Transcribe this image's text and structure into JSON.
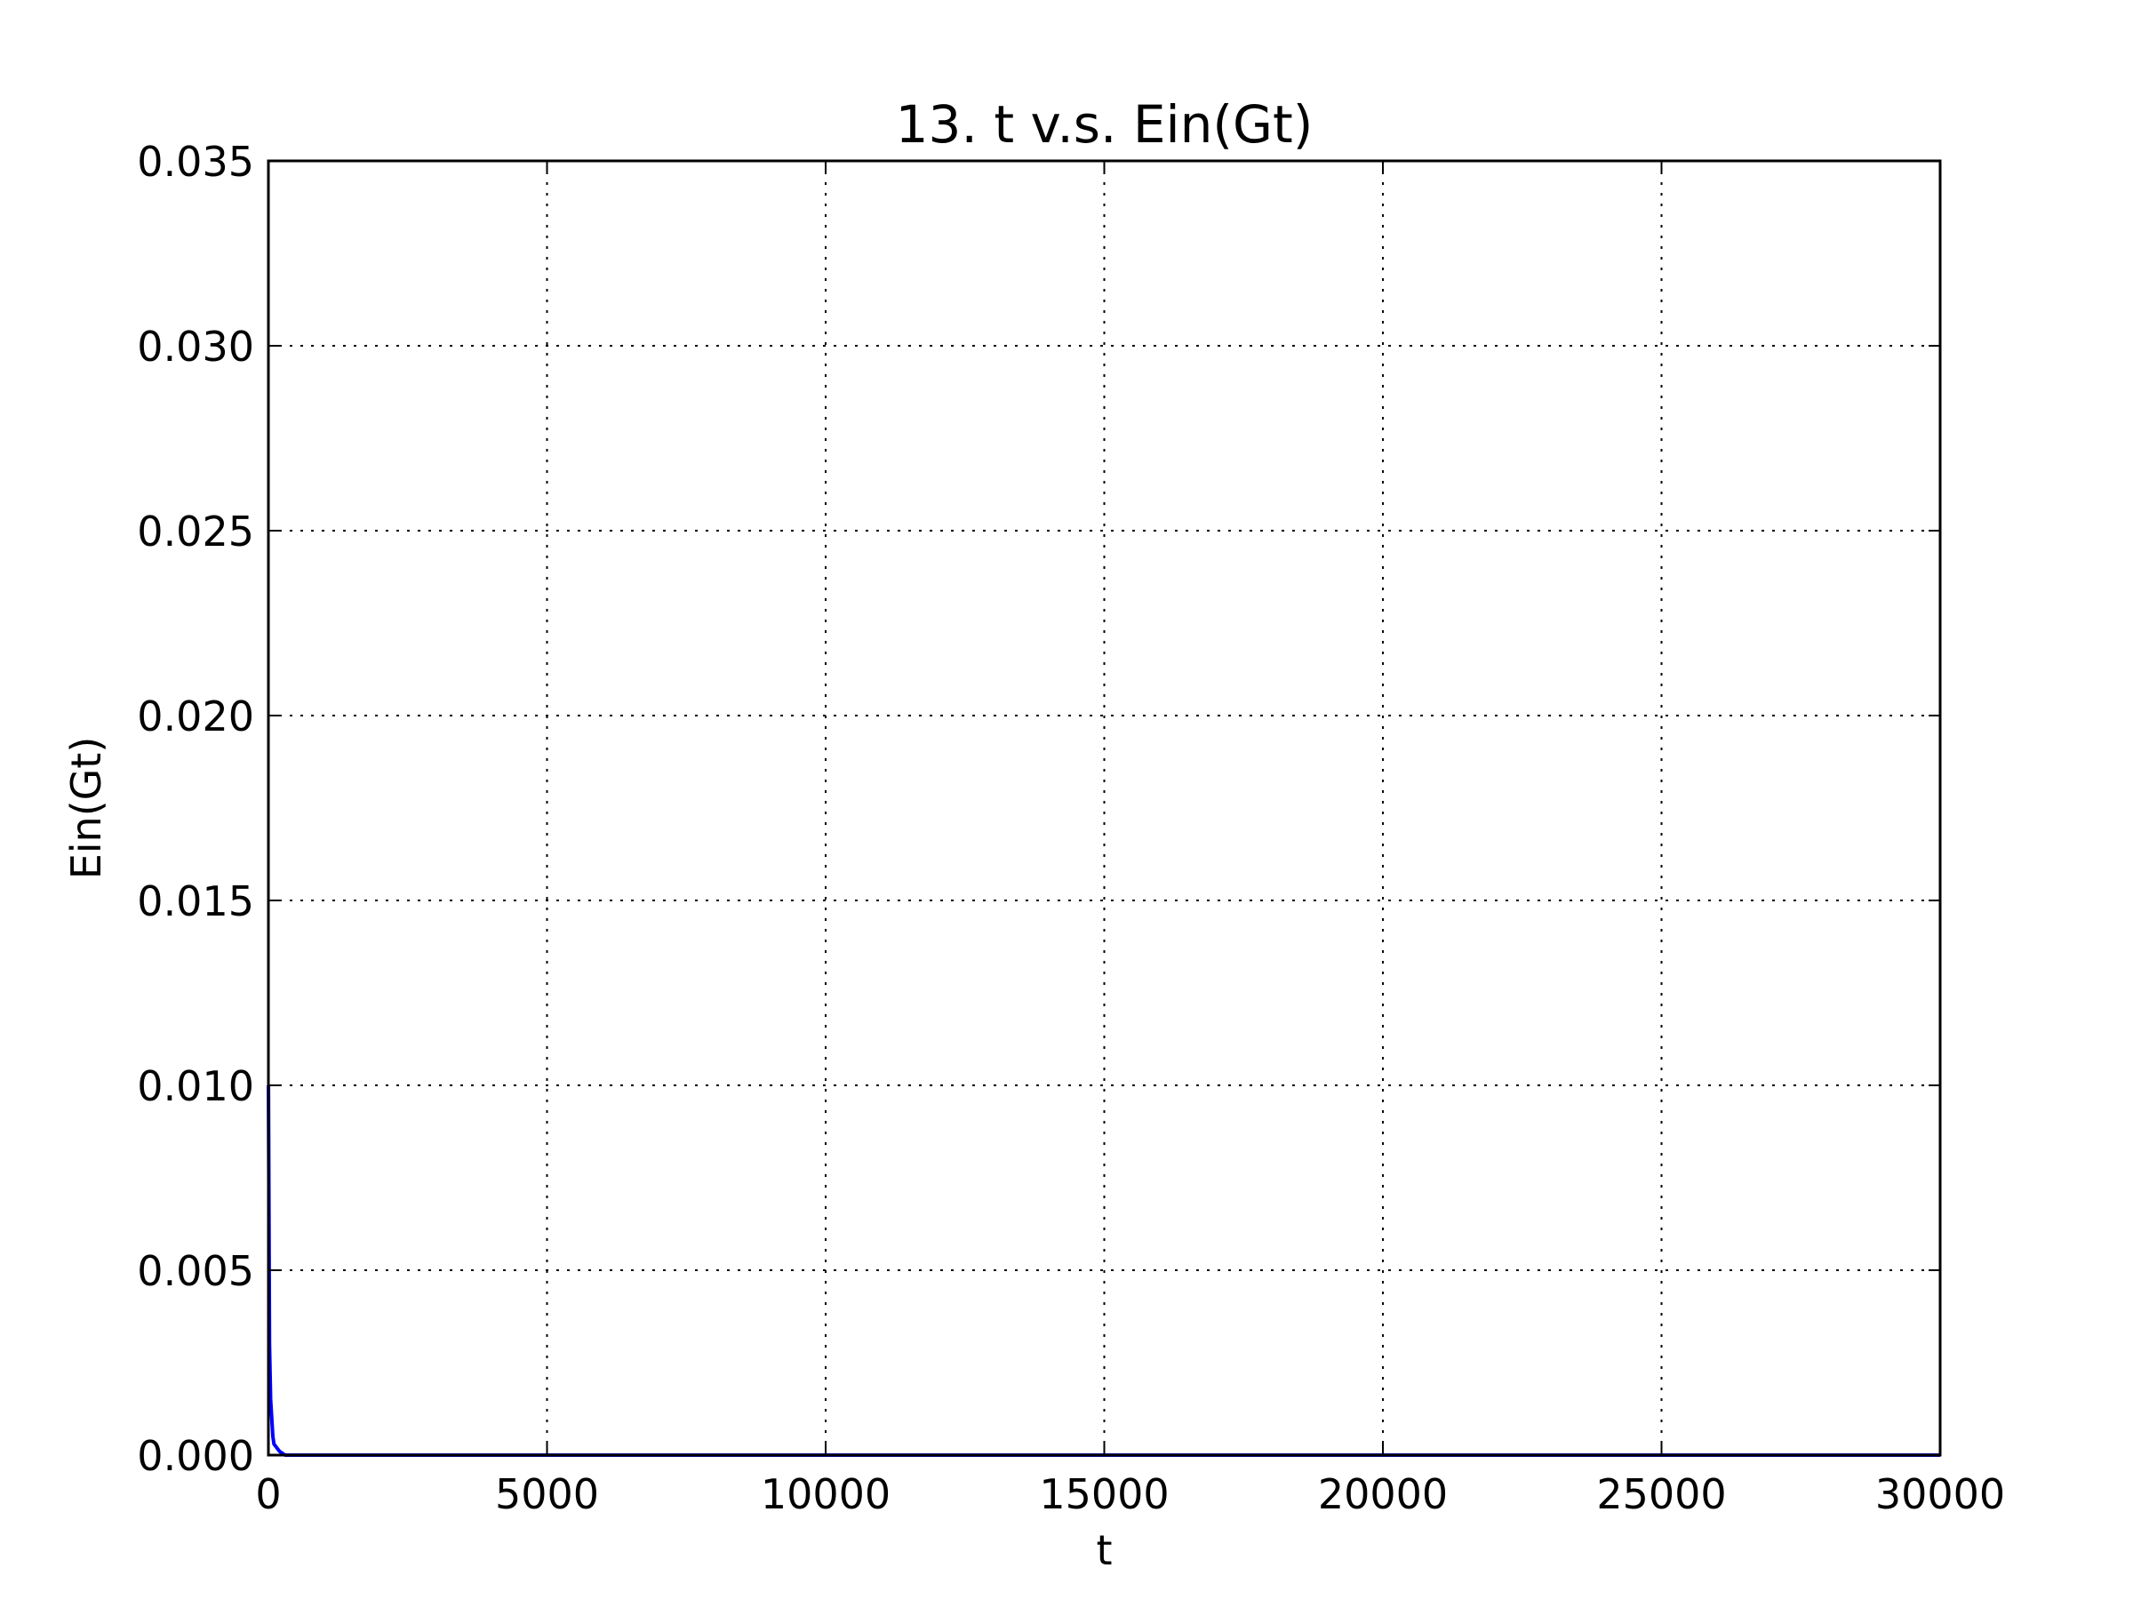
{
  "chart_data": {
    "type": "line",
    "title": "13. t v.s. Ein(Gt)",
    "xlabel": "t",
    "ylabel": "Ein(Gt)",
    "xlim": [
      0,
      30000
    ],
    "ylim": [
      0,
      0.035
    ],
    "xticks": [
      0,
      5000,
      10000,
      15000,
      20000,
      25000,
      30000
    ],
    "xtick_labels": [
      "0",
      "5000",
      "10000",
      "15000",
      "20000",
      "25000",
      "30000"
    ],
    "yticks": [
      0,
      0.005,
      0.01,
      0.015,
      0.02,
      0.025,
      0.03,
      0.035
    ],
    "ytick_labels": [
      "0.000",
      "0.005",
      "0.010",
      "0.015",
      "0.020",
      "0.025",
      "0.030",
      "0.035"
    ],
    "grid": true,
    "series": [
      {
        "color": "#0000ff",
        "x": [
          1,
          20,
          40,
          60,
          80,
          100,
          150,
          200,
          300,
          500,
          1000,
          5000,
          10000,
          20000,
          30000
        ],
        "y": [
          0.01,
          0.003,
          0.0015,
          0.001,
          0.0005,
          0.0003,
          0.0002,
          0.0001,
          0.0,
          0.0,
          0.0,
          0.0,
          0.0,
          0.0,
          0.0
        ]
      }
    ]
  }
}
